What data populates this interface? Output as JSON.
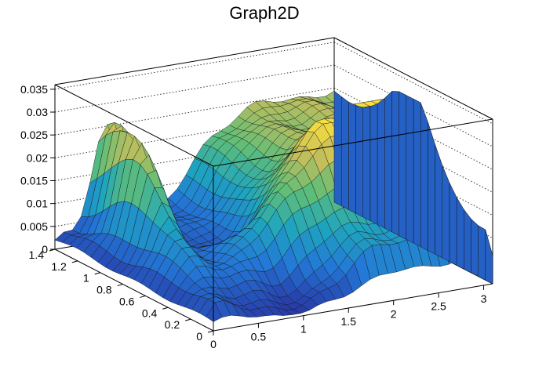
{
  "chart_data": {
    "type": "surface",
    "title": "Graph2D",
    "xlabel": "",
    "ylabel": "",
    "zlabel": "",
    "xlim": [
      0,
      3.1
    ],
    "ylim": [
      0,
      1.4
    ],
    "zlim": [
      0,
      0.036
    ],
    "x_ticks": [
      "0",
      "0.5",
      "1",
      "1.5",
      "2",
      "2.5",
      "3"
    ],
    "y_ticks": [
      "0",
      "0.2",
      "0.4",
      "0.6",
      "0.8",
      "1",
      "1.2",
      "1.4"
    ],
    "z_ticks": [
      "0",
      "0.005",
      "0.01",
      "0.015",
      "0.02",
      "0.025",
      "0.03",
      "0.035"
    ],
    "grid": true,
    "colormap": "viridis-like",
    "grid_x_count": 32,
    "grid_y_count": 22,
    "z_min_color": "#2a3fa8",
    "z_max_color": "#f6e13a"
  }
}
